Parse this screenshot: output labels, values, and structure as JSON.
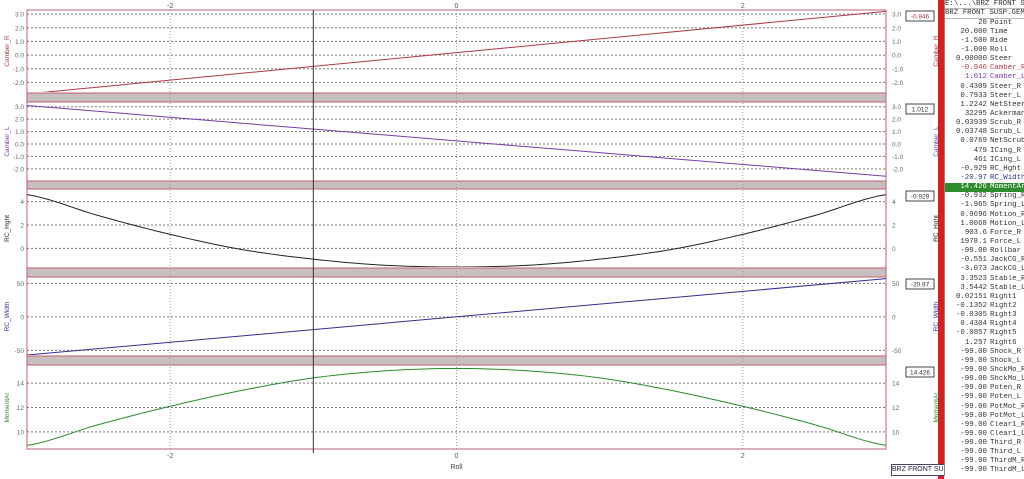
{
  "chart_data": {
    "type": "line",
    "xlabel": "Roll",
    "xlim": [
      -3,
      3
    ],
    "xticks": [
      -2,
      0,
      2
    ],
    "cursor_x": -1,
    "grid": true,
    "panels": [
      {
        "name": "Camber_R",
        "color": "#b03848",
        "value": "-0.946",
        "ylim": [
          -2.7,
          3.3
        ],
        "ticks": [
          "3.0",
          "2.0",
          "1.0",
          "0.0",
          "-1.0",
          "-2.0"
        ],
        "tickvals": [
          3,
          2,
          1,
          0,
          -1,
          -2
        ],
        "x": [
          -3,
          3
        ],
        "y": [
          -2.84,
          3.2
        ]
      },
      {
        "name": "Camber_L",
        "color": "#7a3aa8",
        "value": "1.012",
        "ylim": [
          -2.9,
          3.3
        ],
        "ticks": [
          "3.0",
          "2.0",
          "1.0",
          "0.0",
          "-1.0",
          "-2.0"
        ],
        "tickvals": [
          3,
          2,
          1,
          0,
          -1,
          -2
        ],
        "x": [
          -3,
          3
        ],
        "y": [
          3.1,
          -2.6
        ]
      },
      {
        "name": "RC_Hght",
        "color": "#222222",
        "value": "-0.929",
        "ylim": [
          -1.6,
          5.0
        ],
        "ticks": [
          "4",
          "2",
          "0"
        ],
        "tickvals": [
          4,
          2,
          0
        ],
        "x": [
          -3,
          -2.5,
          -2,
          -1.5,
          -1,
          -0.5,
          0,
          0.5,
          1,
          1.5,
          2,
          2.5,
          3
        ],
        "y": [
          4.6,
          2.8,
          1.2,
          -0.1,
          -0.929,
          -1.45,
          -1.6,
          -1.45,
          -0.929,
          -0.1,
          1.2,
          2.8,
          4.6
        ]
      },
      {
        "name": "RC_Width",
        "color": "#303090",
        "value": "-20.97",
        "ylim": [
          -57,
          58
        ],
        "ticks": [
          "50",
          "0",
          "-50"
        ],
        "tickvals": [
          50,
          0,
          -50
        ],
        "x": [
          -3,
          3
        ],
        "y": [
          -57,
          57
        ]
      },
      {
        "name": "MomentAr",
        "color": "#2e8b2e",
        "value": "14.426",
        "ylim": [
          8.6,
          15.4
        ],
        "ticks": [
          "14",
          "12",
          "10"
        ],
        "tickvals": [
          14,
          12,
          10
        ],
        "x": [
          -3,
          -2.5,
          -2,
          -1.5,
          -1,
          -0.5,
          0,
          0.5,
          1,
          1.5,
          2,
          2.5,
          3
        ],
        "y": [
          8.9,
          10.6,
          12.1,
          13.4,
          14.426,
          15.0,
          15.2,
          15.0,
          14.426,
          13.4,
          12.1,
          10.6,
          8.9
        ]
      }
    ]
  },
  "legend_label": "BRZ FRONT SUSF",
  "side_panel": {
    "path": "E:\\...\\BRZ FRONT S",
    "file": "BRZ FRONT SUSP.GEM",
    "selected_index": 19,
    "rows": [
      {
        "v": "20",
        "n": "Point"
      },
      {
        "v": "20.000",
        "n": "Time"
      },
      {
        "v": "-1.500",
        "n": "Ride"
      },
      {
        "v": "-1.000",
        "n": "Roll"
      },
      {
        "v": "0.00000",
        "n": "Steer"
      },
      {
        "v": "-0.946",
        "n": "Camber_R",
        "c": "#b03848"
      },
      {
        "v": "1.012",
        "n": "Camber_L",
        "c": "#7a3aa8"
      },
      {
        "v": "0.4309",
        "n": "Steer_R"
      },
      {
        "v": "0.7933",
        "n": "Steer_L"
      },
      {
        "v": "1.2242",
        "n": "NetSteer"
      },
      {
        "v": "32295",
        "n": "Ackerman"
      },
      {
        "v": "0.03939",
        "n": "Scrub_R"
      },
      {
        "v": "0.03748",
        "n": "Scrub_L"
      },
      {
        "v": "0.0769",
        "n": "NetScrub"
      },
      {
        "v": "479",
        "n": "ICing_R"
      },
      {
        "v": "461",
        "n": "ICing_L"
      },
      {
        "v": "-0.929",
        "n": "RC_Hght"
      },
      {
        "v": "-20.97",
        "n": "RC_Width",
        "c": "#303090"
      },
      {
        "v": "14.426",
        "n": "MomentAr"
      },
      {
        "v": "-0.932",
        "n": "Spring_R"
      },
      {
        "v": "-1.965",
        "n": "Spring_L"
      },
      {
        "v": "0.9696",
        "n": "Motion_R"
      },
      {
        "v": "1.0068",
        "n": "Motion_L"
      },
      {
        "v": "903.6",
        "n": "Force_R"
      },
      {
        "v": "1978.1",
        "n": "Force_L"
      },
      {
        "v": "-99.00",
        "n": "Rollbar"
      },
      {
        "v": "-0.551",
        "n": "JackCG_R"
      },
      {
        "v": "-3.073",
        "n": "JackCG_L"
      },
      {
        "v": "3.3523",
        "n": "Stable_R"
      },
      {
        "v": "3.5442",
        "n": "Stable_L"
      },
      {
        "v": "0.02151",
        "n": "Right1"
      },
      {
        "v": "-0.1352",
        "n": "Right2"
      },
      {
        "v": "-0.0305",
        "n": "Right3"
      },
      {
        "v": "0.4304",
        "n": "Right4"
      },
      {
        "v": "-0.0857",
        "n": "Right5"
      },
      {
        "v": "1.257",
        "n": "Right6"
      },
      {
        "v": "-99.00",
        "n": "Shock_R"
      },
      {
        "v": "-99.00",
        "n": "Shock_L"
      },
      {
        "v": "-99.00",
        "n": "ShckMo_R"
      },
      {
        "v": "-99.00",
        "n": "ShckMo_L"
      },
      {
        "v": "-99.00",
        "n": "Poten_R"
      },
      {
        "v": "-99.00",
        "n": "Poten_L"
      },
      {
        "v": "-99.00",
        "n": "PotMot_R"
      },
      {
        "v": "-99.00",
        "n": "PotMot_L"
      },
      {
        "v": "-99.00",
        "n": "Clear1_R"
      },
      {
        "v": "-99.00",
        "n": "Clear1_L"
      },
      {
        "v": "-99.00",
        "n": "Third_R"
      },
      {
        "v": "-99.00",
        "n": "Third_L"
      },
      {
        "v": "-99.00",
        "n": "ThirdM_R"
      },
      {
        "v": "-99.00",
        "n": "ThirdM_L"
      }
    ]
  }
}
